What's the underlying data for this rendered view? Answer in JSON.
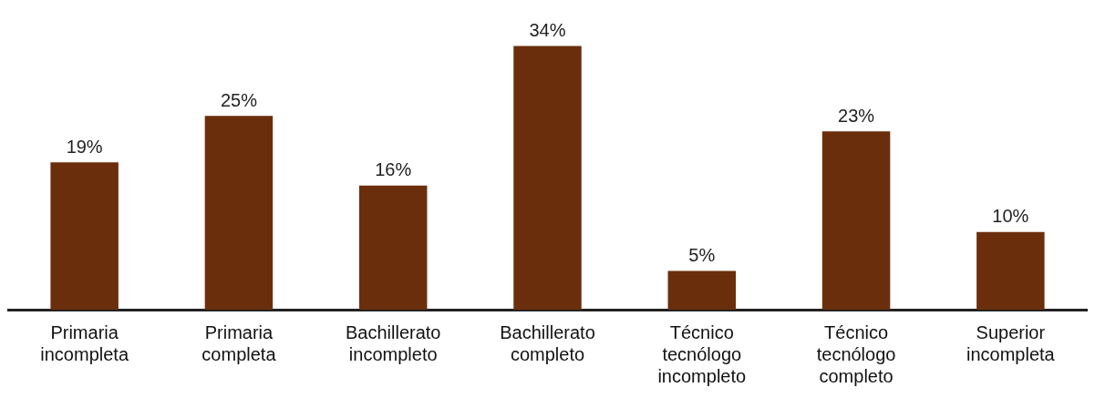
{
  "chart_data": {
    "type": "bar",
    "categories": [
      "Primaria incompleta",
      "Primaria completa",
      "Bachillerato incompleto",
      "Bachillerato completo",
      "Técnico tecnólogo incompleto",
      "Técnico tecnólogo completo",
      "Superior incompleta"
    ],
    "values": [
      19,
      25,
      16,
      34,
      5,
      23,
      10
    ],
    "value_labels": [
      "19%",
      "25%",
      "16%",
      "34%",
      "5%",
      "23%",
      "10%"
    ],
    "color": "#6b2e0c",
    "grid": false,
    "legend": false
  }
}
